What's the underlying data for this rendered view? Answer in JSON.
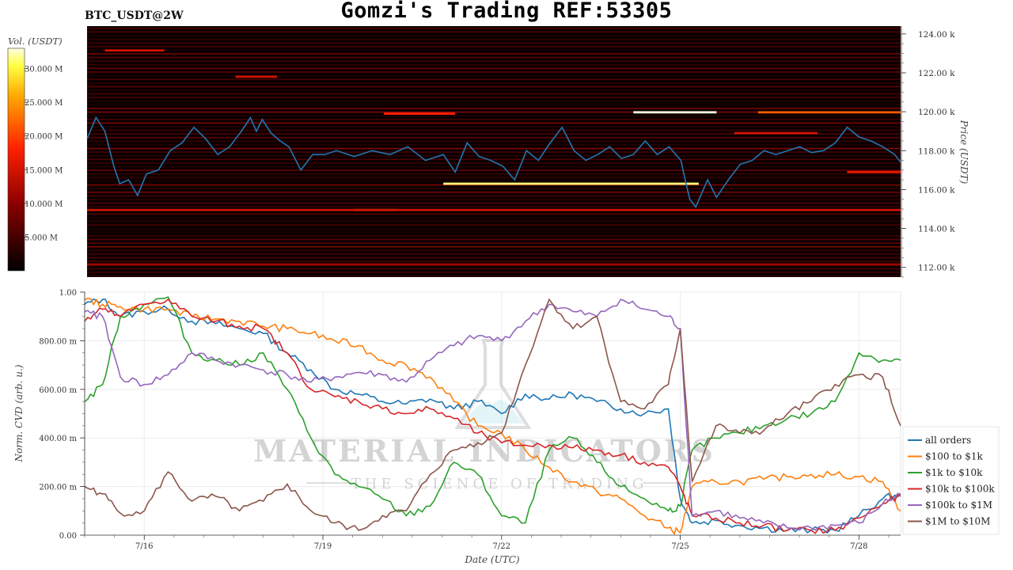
{
  "title": "Gomzi's Trading REF:53305",
  "symbol": "BTC_USDT@2W",
  "colorbar": {
    "label": "Vol. (USDT)",
    "ticks": [
      {
        "value": 30,
        "label": "30.000 M"
      },
      {
        "value": 25,
        "label": "25.000 M"
      },
      {
        "value": 20,
        "label": "20.000 M"
      },
      {
        "value": 15,
        "label": "15.000 M"
      },
      {
        "value": 10,
        "label": "10.000 M"
      },
      {
        "value": 5,
        "label": "5.000 M"
      }
    ],
    "range": [
      0,
      33
    ]
  },
  "watermark": {
    "line1": "MATERIAL INDICATORS",
    "line2": "THE SCIENCE OF TRADING"
  },
  "colors": {
    "price_line": "#1f77b4",
    "heatmap_low": "#000000",
    "heatmap_high": "#ffffff"
  },
  "chart_data": [
    {
      "type": "heatmap",
      "title": "BTC_USDT@2W",
      "ylabel": "Price (USDT)",
      "ylim": [
        111.5,
        124.4
      ],
      "xlim": [
        15.0,
        28.7
      ],
      "y_ticks": [
        {
          "value": 124,
          "label": "124.00 k"
        },
        {
          "value": 122,
          "label": "122.00 k"
        },
        {
          "value": 120,
          "label": "120.00 k"
        },
        {
          "value": 118,
          "label": "118.00 k"
        },
        {
          "value": 116,
          "label": "116.00 k"
        },
        {
          "value": 114,
          "label": "114.00 k"
        },
        {
          "value": 112,
          "label": "112.00 k"
        }
      ],
      "price_series": {
        "name": "price",
        "x": [
          15.0,
          15.15,
          15.3,
          15.45,
          15.55,
          15.7,
          15.85,
          16.0,
          16.2,
          16.4,
          16.6,
          16.8,
          17.0,
          17.2,
          17.4,
          17.6,
          17.75,
          17.85,
          17.95,
          18.1,
          18.25,
          18.4,
          18.6,
          18.8,
          19.0,
          19.2,
          19.5,
          19.8,
          20.1,
          20.4,
          20.7,
          21.0,
          21.2,
          21.4,
          21.6,
          21.8,
          22.0,
          22.2,
          22.4,
          22.6,
          22.8,
          23.0,
          23.2,
          23.4,
          23.6,
          23.8,
          24.0,
          24.2,
          24.4,
          24.6,
          24.8,
          25.0,
          25.05,
          25.15,
          25.25,
          25.35,
          25.45,
          25.6,
          25.8,
          26.0,
          26.2,
          26.4,
          26.6,
          26.8,
          27.0,
          27.2,
          27.4,
          27.6,
          27.8,
          28.0,
          28.2,
          28.4,
          28.6,
          28.7
        ],
        "y": [
          118.6,
          119.7,
          119.0,
          117.2,
          116.3,
          116.5,
          115.7,
          116.8,
          117.0,
          118.0,
          118.4,
          119.2,
          118.6,
          117.8,
          118.2,
          119.0,
          119.7,
          119.0,
          119.6,
          118.9,
          118.5,
          118.2,
          117.0,
          117.8,
          117.8,
          118.0,
          117.7,
          118.0,
          117.8,
          118.2,
          117.5,
          117.8,
          116.9,
          118.4,
          117.7,
          117.5,
          117.2,
          116.5,
          118.0,
          117.5,
          118.4,
          119.2,
          118.0,
          117.5,
          117.8,
          118.2,
          117.6,
          117.8,
          118.5,
          117.8,
          118.2,
          117.5,
          116.8,
          115.5,
          115.1,
          115.8,
          116.5,
          115.6,
          116.5,
          117.3,
          117.5,
          118.0,
          117.8,
          118.0,
          118.2,
          117.9,
          118.0,
          118.4,
          119.2,
          118.7,
          118.5,
          118.2,
          117.8,
          117.4
        ]
      },
      "liquidity_bands": [
        {
          "price": 119.97,
          "x0": 24.2,
          "x1": 25.6,
          "intensity": 1.0
        },
        {
          "price": 116.3,
          "x0": 21.0,
          "x1": 25.3,
          "intensity": 0.95
        },
        {
          "price": 119.97,
          "x0": 26.3,
          "x1": 28.7,
          "intensity": 0.65
        },
        {
          "price": 119.9,
          "x0": 20.0,
          "x1": 21.2,
          "intensity": 0.55
        },
        {
          "price": 114.95,
          "x0": 19.5,
          "x1": 20.2,
          "intensity": 0.7
        },
        {
          "price": 114.95,
          "x0": 15.0,
          "x1": 28.7,
          "intensity": 0.45
        },
        {
          "price": 123.15,
          "x0": 15.3,
          "x1": 16.3,
          "intensity": 0.45
        },
        {
          "price": 121.8,
          "x0": 17.5,
          "x1": 18.2,
          "intensity": 0.45
        },
        {
          "price": 118.9,
          "x0": 25.9,
          "x1": 27.3,
          "intensity": 0.45
        },
        {
          "price": 116.9,
          "x0": 27.8,
          "x1": 28.7,
          "intensity": 0.5
        },
        {
          "price": 112.15,
          "x0": 15.0,
          "x1": 28.7,
          "intensity": 0.35
        }
      ]
    },
    {
      "type": "line",
      "xlabel": "Date (UTC)",
      "ylabel": "Norm. CVD (arb. u.)",
      "xlim": [
        15.0,
        28.7
      ],
      "ylim": [
        0,
        1
      ],
      "x_ticks": [
        {
          "value": 16,
          "label": "7/16"
        },
        {
          "value": 19,
          "label": "7/19"
        },
        {
          "value": 22,
          "label": "7/22"
        },
        {
          "value": 25,
          "label": "7/25"
        },
        {
          "value": 28,
          "label": "7/28"
        }
      ],
      "y_ticks": [
        {
          "value": 1.0,
          "label": "1.00"
        },
        {
          "value": 0.8,
          "label": "800.00 m"
        },
        {
          "value": 0.6,
          "label": "600.00 m"
        },
        {
          "value": 0.4,
          "label": "400.00 m"
        },
        {
          "value": 0.2,
          "label": "200.00 m"
        },
        {
          "value": 0.0,
          "label": "0.00"
        }
      ],
      "x": [
        15.0,
        15.3,
        15.6,
        16.0,
        16.4,
        16.8,
        17.2,
        17.6,
        18.0,
        18.4,
        18.8,
        19.2,
        19.6,
        20.0,
        20.4,
        20.8,
        21.2,
        21.6,
        22.0,
        22.4,
        22.8,
        23.2,
        23.6,
        24.0,
        24.4,
        24.8,
        25.0,
        25.2,
        25.6,
        26.0,
        26.4,
        26.8,
        27.2,
        27.6,
        28.0,
        28.4,
        28.7
      ],
      "series": [
        {
          "name": "all orders",
          "color": "#1f77b4",
          "values": [
            0.95,
            0.97,
            0.9,
            0.92,
            0.93,
            0.88,
            0.87,
            0.85,
            0.83,
            0.75,
            0.68,
            0.6,
            0.58,
            0.55,
            0.54,
            0.56,
            0.52,
            0.55,
            0.5,
            0.58,
            0.56,
            0.58,
            0.55,
            0.52,
            0.5,
            0.52,
            0.15,
            0.05,
            0.06,
            0.04,
            0.03,
            0.02,
            0.02,
            0.02,
            0.08,
            0.15,
            0.17
          ]
        },
        {
          "name": "$100 to $1k",
          "color": "#ff7f0e",
          "values": [
            0.97,
            0.95,
            0.94,
            0.93,
            0.93,
            0.9,
            0.89,
            0.88,
            0.86,
            0.85,
            0.83,
            0.8,
            0.78,
            0.72,
            0.7,
            0.65,
            0.55,
            0.45,
            0.42,
            0.35,
            0.28,
            0.22,
            0.18,
            0.15,
            0.08,
            0.03,
            0.01,
            0.2,
            0.22,
            0.22,
            0.23,
            0.24,
            0.25,
            0.25,
            0.24,
            0.22,
            0.1
          ]
        },
        {
          "name": "$1k to $10k",
          "color": "#2ca02c",
          "values": [
            0.55,
            0.62,
            0.9,
            0.95,
            0.98,
            0.75,
            0.72,
            0.7,
            0.75,
            0.6,
            0.4,
            0.25,
            0.2,
            0.15,
            0.08,
            0.12,
            0.3,
            0.25,
            0.08,
            0.05,
            0.35,
            0.4,
            0.3,
            0.2,
            0.15,
            0.1,
            0.12,
            0.35,
            0.4,
            0.42,
            0.45,
            0.48,
            0.5,
            0.55,
            0.75,
            0.72,
            0.72
          ]
        },
        {
          "name": "$10k to $100k",
          "color": "#d62728",
          "values": [
            0.88,
            0.93,
            0.9,
            0.95,
            0.97,
            0.9,
            0.88,
            0.86,
            0.85,
            0.75,
            0.6,
            0.57,
            0.55,
            0.52,
            0.5,
            0.52,
            0.48,
            0.42,
            0.38,
            0.37,
            0.37,
            0.36,
            0.35,
            0.33,
            0.3,
            0.28,
            0.2,
            0.08,
            0.07,
            0.05,
            0.04,
            0.02,
            0.02,
            0.02,
            0.07,
            0.13,
            0.16
          ]
        },
        {
          "name": "$100k to $1M",
          "color": "#9467bd",
          "values": [
            0.92,
            0.9,
            0.65,
            0.62,
            0.66,
            0.75,
            0.72,
            0.7,
            0.68,
            0.66,
            0.63,
            0.65,
            0.67,
            0.66,
            0.63,
            0.72,
            0.78,
            0.82,
            0.8,
            0.88,
            0.95,
            0.92,
            0.9,
            0.97,
            0.93,
            0.9,
            0.85,
            0.08,
            0.1,
            0.07,
            0.05,
            0.03,
            0.03,
            0.04,
            0.05,
            0.13,
            0.17
          ]
        },
        {
          "name": "$1M to $10M",
          "color": "#8c564b",
          "values": [
            0.2,
            0.17,
            0.09,
            0.1,
            0.26,
            0.14,
            0.16,
            0.1,
            0.14,
            0.21,
            0.1,
            0.05,
            0.02,
            0.08,
            0.1,
            0.25,
            0.35,
            0.38,
            0.42,
            0.7,
            0.97,
            0.85,
            0.9,
            0.55,
            0.52,
            0.62,
            0.85,
            0.22,
            0.45,
            0.42,
            0.43,
            0.5,
            0.55,
            0.62,
            0.66,
            0.65,
            0.45
          ]
        }
      ],
      "legend_position": "bottom-right"
    }
  ]
}
